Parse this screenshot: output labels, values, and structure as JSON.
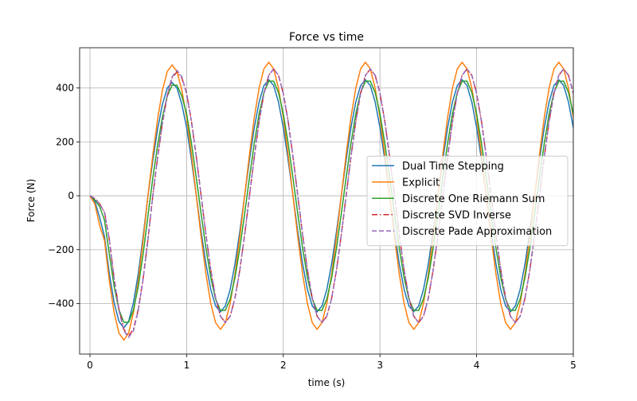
{
  "chart_data": {
    "type": "line",
    "title": "Force vs time",
    "x_label": "time (s)",
    "y_label": "Force (N)",
    "x": [
      0,
      0.05,
      0.1,
      0.15,
      0.2,
      0.25,
      0.3,
      0.35,
      0.4,
      0.45,
      0.5,
      0.55,
      0.6,
      0.65,
      0.7,
      0.75,
      0.8,
      0.85,
      0.9,
      0.95,
      1,
      1.05,
      1.1,
      1.15,
      1.2,
      1.25,
      1.3,
      1.35,
      1.4,
      1.45,
      1.5,
      1.55,
      1.6,
      1.65,
      1.7,
      1.75,
      1.8,
      1.85,
      1.9,
      1.95,
      2,
      2.05,
      2.1,
      2.15,
      2.2,
      2.25,
      2.3,
      2.35,
      2.4,
      2.45,
      2.5,
      2.55,
      2.6,
      2.65,
      2.7,
      2.75,
      2.8,
      2.85,
      2.9,
      2.95,
      3,
      3.05,
      3.1,
      3.15,
      3.2,
      3.25,
      3.3,
      3.35,
      3.4,
      3.45,
      3.5,
      3.55,
      3.6,
      3.65,
      3.7,
      3.75,
      3.8,
      3.85,
      3.9,
      3.95,
      4,
      4.05,
      4.1,
      4.15,
      4.2,
      4.25,
      4.3,
      4.35,
      4.4,
      4.45,
      4.5,
      4.55,
      4.6,
      4.65,
      4.7,
      4.75,
      4.8,
      4.85,
      4.9,
      4.95,
      5
    ],
    "series": [
      {
        "name": "Dual Time Stepping",
        "color": "#1f77b4",
        "linestyle": "solid",
        "values": [
          0,
          -20,
          -80,
          -151,
          -288,
          -396,
          -466,
          -490,
          -466,
          -396,
          -288,
          -151,
          0,
          130,
          248,
          340,
          400,
          420,
          400,
          340,
          253,
          133,
          0,
          -133,
          -253,
          -348,
          -409,
          -430,
          -409,
          -348,
          -253,
          -133,
          0,
          133,
          253,
          348,
          409,
          430,
          409,
          348,
          253,
          133,
          0,
          -133,
          -253,
          -348,
          -409,
          -430,
          -409,
          -348,
          -253,
          -133,
          0,
          133,
          253,
          348,
          409,
          430,
          409,
          348,
          253,
          133,
          0,
          -133,
          -253,
          -348,
          -409,
          -430,
          -409,
          -348,
          -253,
          -133,
          0,
          133,
          253,
          348,
          409,
          430,
          409,
          348,
          253,
          133,
          0,
          -133,
          -253,
          -348,
          -409,
          -430,
          -409,
          -348,
          -253,
          -133,
          0,
          133,
          253,
          348,
          409,
          430,
          409,
          348,
          253
        ]
      },
      {
        "name": "Explicit",
        "color": "#ff7f0e",
        "linestyle": "solid",
        "values": [
          0,
          -30,
          -110,
          -165,
          -315,
          -433,
          -509,
          -535,
          -509,
          -433,
          -315,
          -165,
          0,
          150,
          285,
          392,
          461,
          485,
          461,
          392,
          291,
          153,
          0,
          -153,
          -291,
          -400,
          -471,
          -495,
          -471,
          -400,
          -291,
          -153,
          0,
          153,
          291,
          400,
          471,
          495,
          471,
          400,
          291,
          153,
          0,
          -153,
          -291,
          -400,
          -471,
          -495,
          -471,
          -400,
          -291,
          -153,
          0,
          153,
          291,
          400,
          471,
          495,
          471,
          400,
          291,
          153,
          0,
          -153,
          -291,
          -400,
          -471,
          -495,
          -471,
          -400,
          -291,
          -153,
          0,
          153,
          291,
          400,
          471,
          495,
          471,
          400,
          291,
          153,
          0,
          -153,
          -291,
          -400,
          -471,
          -495,
          -471,
          -400,
          -291,
          -153,
          0,
          153,
          291,
          400,
          471,
          495,
          471,
          400,
          291
        ]
      },
      {
        "name": "Discrete One Riemann Sum",
        "color": "#2ca02c",
        "linestyle": "solid",
        "values": [
          0,
          -15,
          -40,
          -90,
          -216,
          -336,
          -423,
          -469,
          -469,
          -423,
          -336,
          -216,
          -74,
          65,
          188,
          293,
          370,
          410,
          410,
          370,
          304,
          195,
          67,
          -67,
          -195,
          -304,
          -383,
          -425,
          -425,
          -383,
          -304,
          -195,
          -67,
          67,
          195,
          304,
          383,
          425,
          425,
          383,
          304,
          195,
          67,
          -67,
          -195,
          -304,
          -383,
          -425,
          -425,
          -383,
          -304,
          -195,
          -67,
          67,
          195,
          304,
          383,
          425,
          425,
          383,
          304,
          195,
          67,
          -67,
          -195,
          -304,
          -383,
          -425,
          -425,
          -383,
          -304,
          -195,
          -67,
          67,
          195,
          304,
          383,
          425,
          425,
          383,
          304,
          195,
          67,
          -67,
          -195,
          -304,
          -383,
          -425,
          -425,
          -383,
          -304,
          -195,
          -67,
          67,
          195,
          304,
          383,
          425,
          425,
          383,
          304
        ]
      },
      {
        "name": "Discrete SVD Inverse",
        "color": "#d62728",
        "linestyle": "dashdot",
        "values": [
          0,
          -10,
          -30,
          -60,
          -161,
          -306,
          -421,
          -495,
          -520,
          -495,
          -421,
          -306,
          -161,
          0,
          142,
          270,
          372,
          437,
          460,
          437,
          380,
          276,
          145,
          0,
          -145,
          -276,
          -380,
          -447,
          -470,
          -447,
          -380,
          -276,
          -145,
          0,
          145,
          276,
          380,
          447,
          470,
          447,
          380,
          276,
          145,
          0,
          -145,
          -276,
          -380,
          -447,
          -470,
          -447,
          -380,
          -276,
          -145,
          0,
          145,
          276,
          380,
          447,
          470,
          447,
          380,
          276,
          145,
          0,
          -145,
          -276,
          -380,
          -447,
          -470,
          -447,
          -380,
          -276,
          -145,
          0,
          145,
          276,
          380,
          447,
          470,
          447,
          380,
          276,
          145,
          0,
          -145,
          -276,
          -380,
          -447,
          -470,
          -447,
          -380,
          -276,
          -145,
          0,
          145,
          276,
          380,
          447,
          470,
          447,
          380
        ]
      },
      {
        "name": "Discrete Pade Approximation",
        "color": "#9467bd",
        "linestyle": "dashed",
        "values": [
          0,
          -10,
          -30,
          -62,
          -163,
          -309,
          -425,
          -500,
          -525,
          -500,
          -425,
          -309,
          -163,
          0,
          143,
          272,
          375,
          441,
          465,
          441,
          380,
          276,
          145,
          0,
          -145,
          -276,
          -380,
          -447,
          -470,
          -447,
          -380,
          -276,
          -145,
          0,
          145,
          276,
          380,
          447,
          470,
          447,
          380,
          276,
          145,
          0,
          -145,
          -276,
          -380,
          -447,
          -470,
          -447,
          -380,
          -276,
          -145,
          0,
          145,
          276,
          380,
          447,
          470,
          447,
          380,
          276,
          145,
          0,
          -145,
          -276,
          -380,
          -447,
          -470,
          -447,
          -380,
          -276,
          -145,
          0,
          145,
          276,
          380,
          447,
          470,
          447,
          380,
          276,
          145,
          0,
          -145,
          -276,
          -380,
          -447,
          -470,
          -447,
          -380,
          -276,
          -145,
          0,
          145,
          276,
          380,
          447,
          470,
          447,
          380
        ]
      }
    ],
    "xlim": [
      -0.107,
      5
    ],
    "ylim": [
      -587,
      549
    ],
    "xticks": [
      0,
      1,
      2,
      3,
      4,
      5
    ],
    "yticks": [
      {
        "value": -400,
        "label": "−400"
      },
      {
        "value": -200,
        "label": "−200"
      },
      0,
      200,
      400
    ],
    "grid": true,
    "legend": "center right"
  }
}
